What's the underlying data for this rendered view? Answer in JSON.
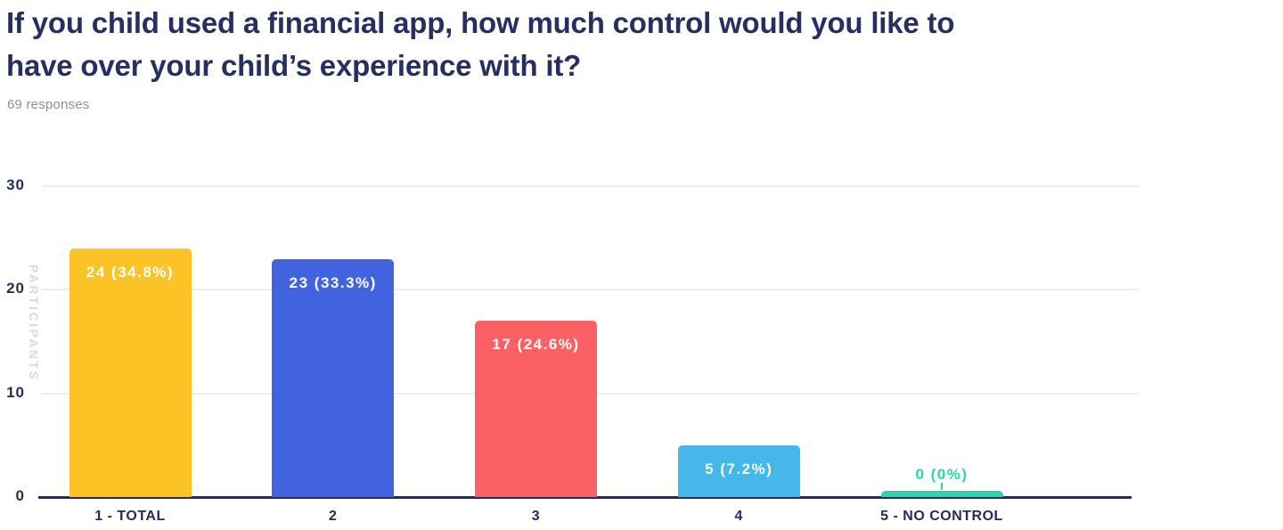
{
  "header": {
    "title": "If you child used a financial app, how much control would you like to have over your child’s experience with it?",
    "subtitle": "69 responses"
  },
  "chart_data": {
    "type": "bar",
    "title": "If you child used a financial app, how much control would you like to have over your child’s experience with it?",
    "subtitle": "69 responses",
    "categories": [
      "1 - TOTAL",
      "2",
      "3",
      "4",
      "5 - NO CONTROL"
    ],
    "values": [
      24,
      23,
      17,
      5,
      0
    ],
    "value_labels": [
      "24 (34.8%)",
      "23 (33.3%)",
      "17 (24.6%)",
      "5 (7.2%)",
      "0 (0%)"
    ],
    "bar_colors": [
      "#FCC327",
      "#4163DF",
      "#FB6064",
      "#45B7E8",
      "#2BD3AE"
    ],
    "xlabel": "",
    "ylabel": "PARTICIPANTS",
    "ylim": [
      0,
      30
    ],
    "yticks": [
      0,
      10,
      20,
      30
    ],
    "grid": true,
    "legend": false
  },
  "colors": {
    "title_navy": "#272E61",
    "subtitle_gray": "#8F8F94",
    "axis_navy": "#252C5D",
    "gridline_gray": "#EDEDF1",
    "y_axis_label_gray": "#D8DAE3",
    "bar_label_white": "#FFFFFF"
  }
}
